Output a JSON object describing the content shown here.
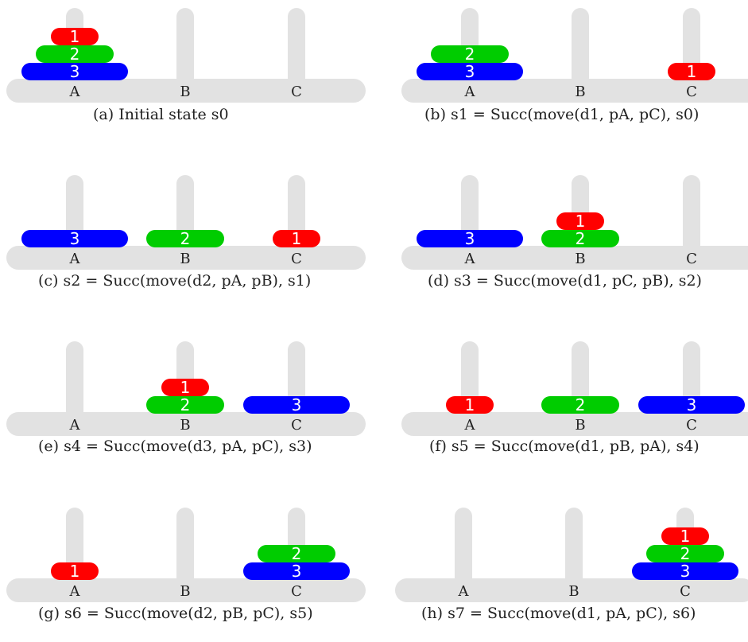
{
  "colors": {
    "peg": "#e2e2e2",
    "disk_1": "#ff0000",
    "disk_2": "#00cc00",
    "disk_3": "#0000ff",
    "disk_label": "#ffffff",
    "peg_label": "#222222"
  },
  "peg_labels": [
    "A",
    "B",
    "C"
  ],
  "disk_labels": [
    "1",
    "2",
    "3"
  ],
  "panels": [
    {
      "id": "a",
      "caption": "(a) Initial state s0",
      "pegs": {
        "A": [
          3,
          2,
          1
        ],
        "B": [],
        "C": []
      }
    },
    {
      "id": "b",
      "caption": "(b) s1 = Succ(move(d1, pA, pC), s0)",
      "pegs": {
        "A": [
          3,
          2
        ],
        "B": [],
        "C": [
          1
        ]
      }
    },
    {
      "id": "c",
      "caption": "(c) s2 = Succ(move(d2, pA, pB), s1)",
      "pegs": {
        "A": [
          3
        ],
        "B": [
          2
        ],
        "C": [
          1
        ]
      }
    },
    {
      "id": "d",
      "caption": "(d) s3 = Succ(move(d1, pC, pB), s2)",
      "pegs": {
        "A": [
          3
        ],
        "B": [
          2,
          1
        ],
        "C": []
      }
    },
    {
      "id": "e",
      "caption": "(e) s4 = Succ(move(d3, pA, pC), s3)",
      "pegs": {
        "A": [],
        "B": [
          2,
          1
        ],
        "C": [
          3
        ]
      }
    },
    {
      "id": "f",
      "caption": "(f) s5 = Succ(move(d1, pB, pA), s4)",
      "pegs": {
        "A": [
          1
        ],
        "B": [
          2
        ],
        "C": [
          3
        ]
      }
    },
    {
      "id": "g",
      "caption": "(g) s6 = Succ(move(d2, pB, pC), s5)",
      "pegs": {
        "A": [
          1
        ],
        "B": [],
        "C": [
          3,
          2
        ]
      }
    },
    {
      "id": "h",
      "caption": "(h) s7 = Succ(move(d1, pA, pC), s6)",
      "pegs": {
        "A": [],
        "B": [],
        "C": [
          3,
          2,
          1
        ]
      }
    }
  ]
}
